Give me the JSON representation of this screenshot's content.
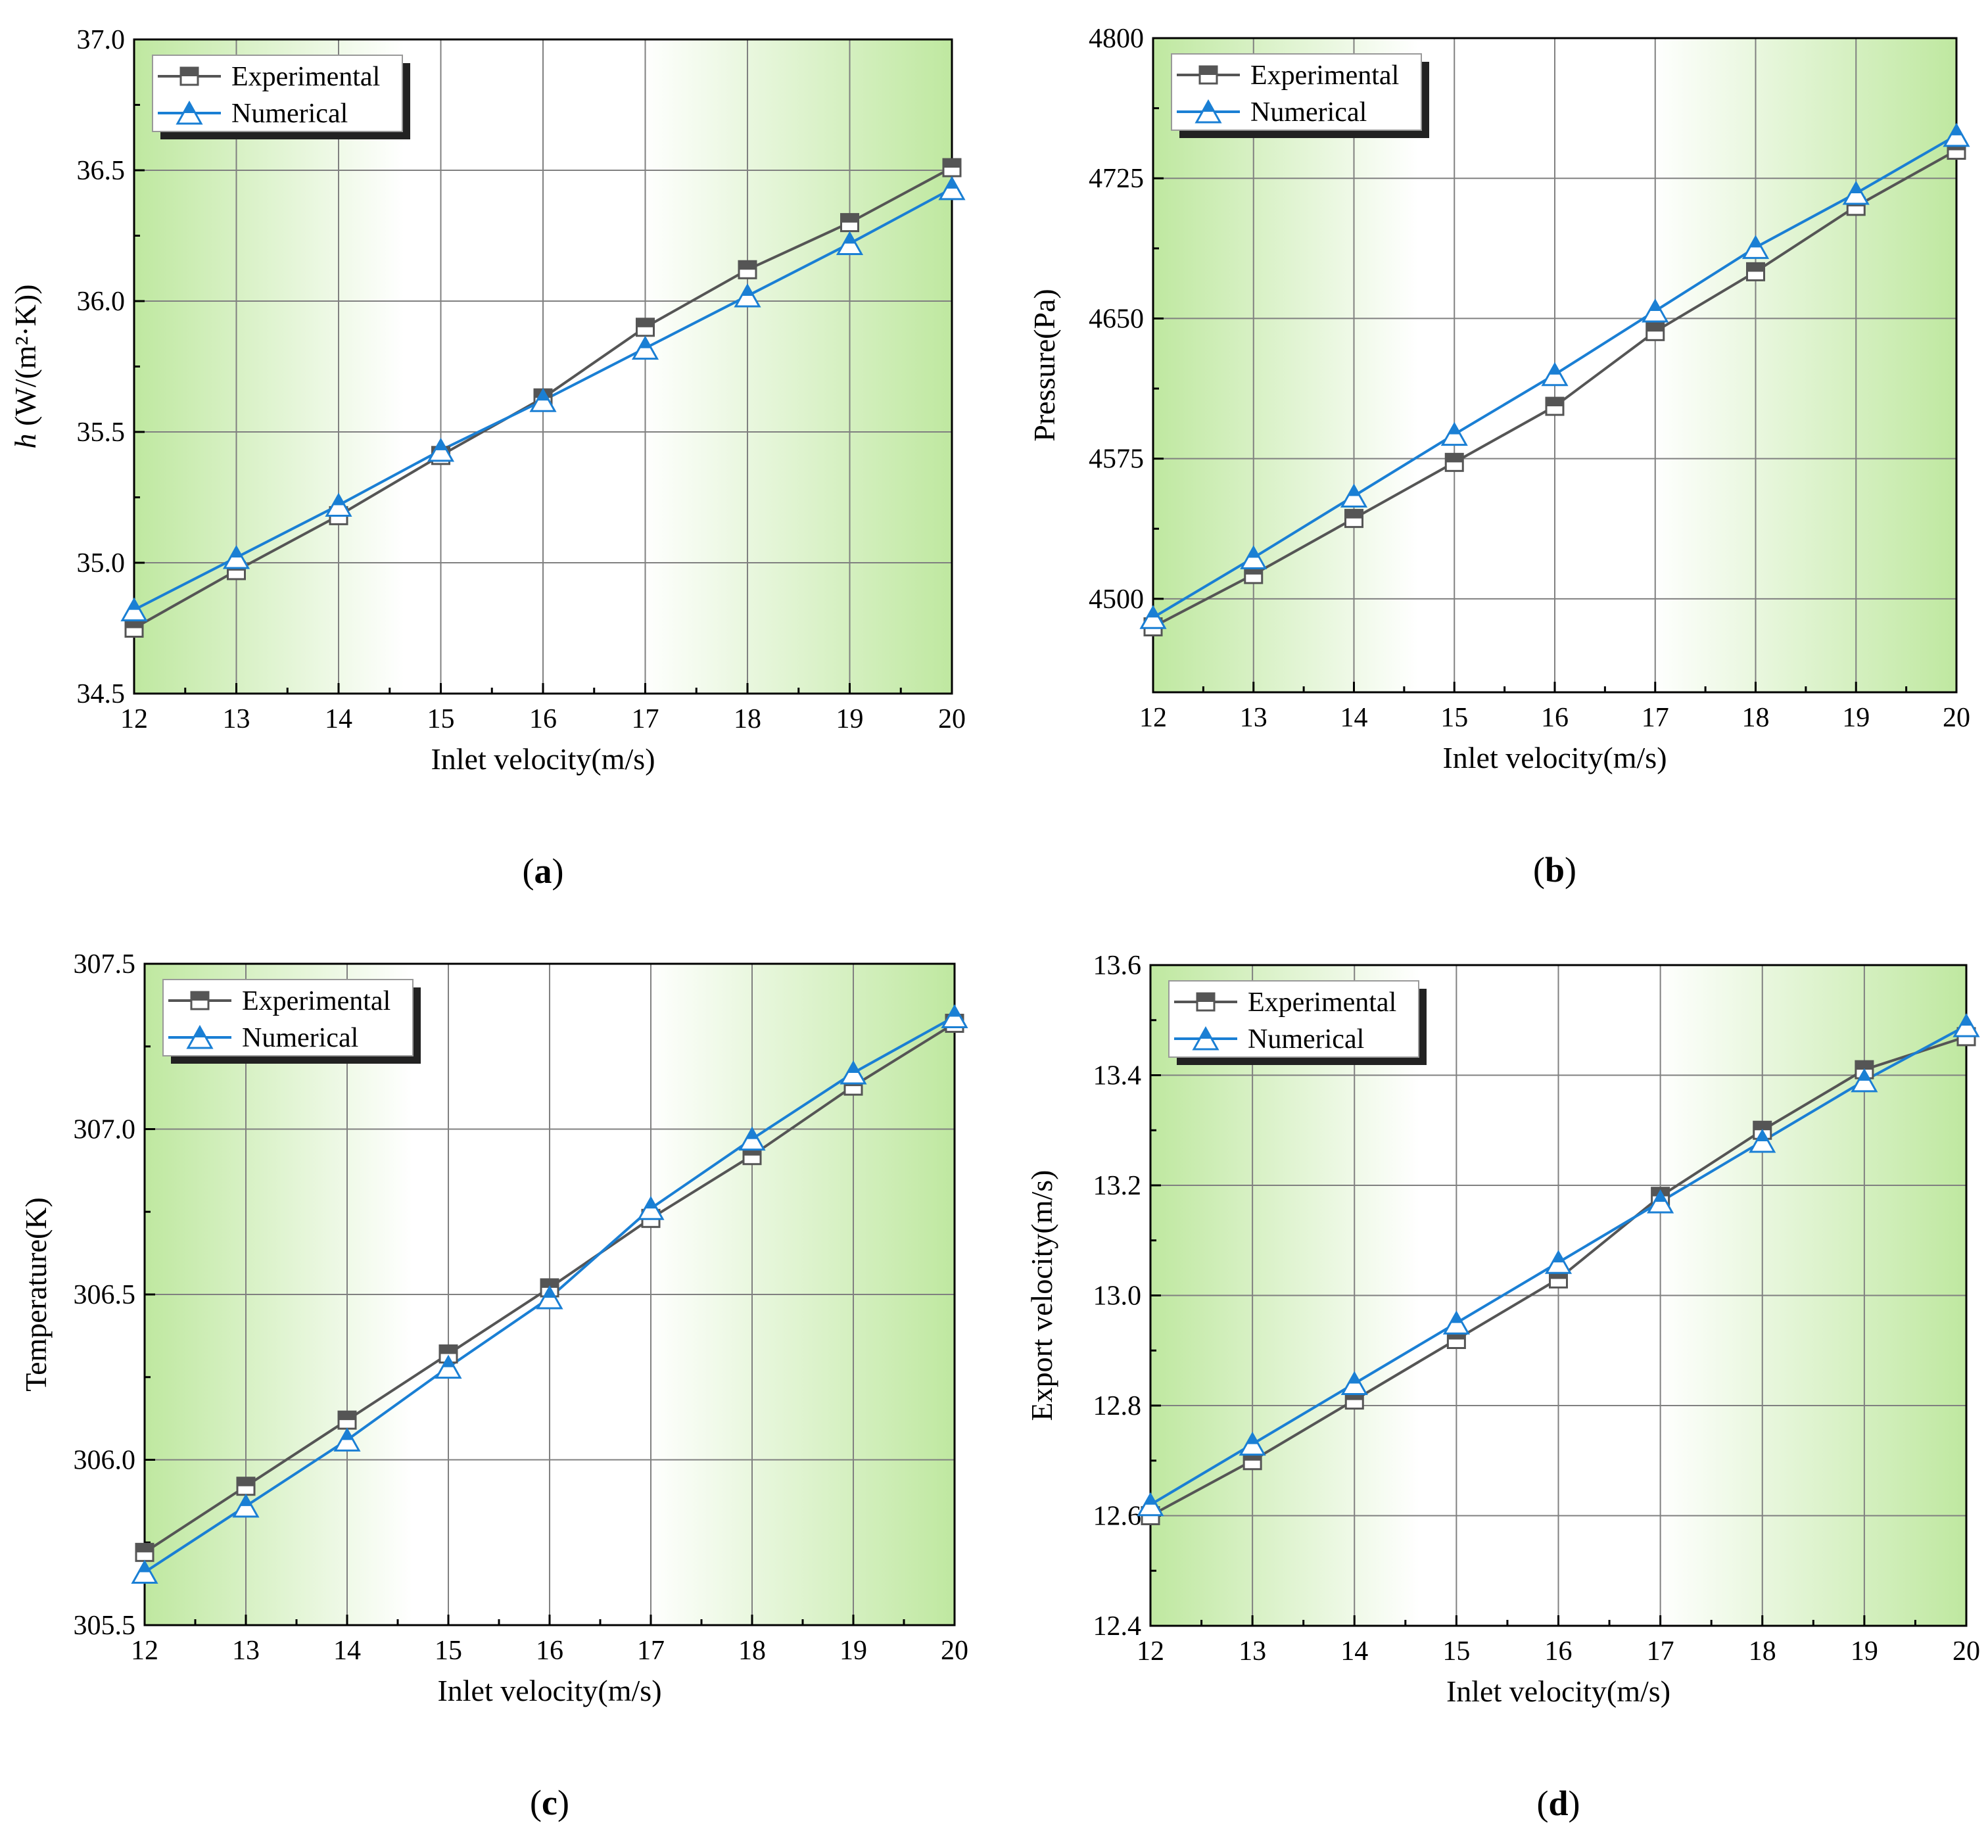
{
  "colors": {
    "experimental": "#555555",
    "numerical": "#1a7fd4",
    "plot_bg_green": "#bfe8a0",
    "plot_bg_white": "#ffffff",
    "grid": "#808080"
  },
  "chart_data": [
    {
      "type": "line",
      "panel_label": "(a)",
      "panel_letter": "a",
      "xlabel": "Inlet velocity(m/s)",
      "ylabel_italic": "h",
      "ylabel_rest": " (W/(m²·K))",
      "x": [
        12,
        13,
        14,
        15,
        16,
        17,
        18,
        19,
        20
      ],
      "xlim": [
        12,
        20
      ],
      "xticks": [
        "12",
        "13",
        "14",
        "15",
        "16",
        "17",
        "18",
        "19",
        "20"
      ],
      "ylim": [
        34.5,
        37.0
      ],
      "yticks": [
        "34.5",
        "35.0",
        "35.5",
        "36.0",
        "36.5",
        "37.0"
      ],
      "gradient": "edges",
      "legend_position": "top-left",
      "series": [
        {
          "name": "Experimental",
          "marker": "square",
          "values": [
            34.75,
            34.97,
            35.18,
            35.41,
            35.63,
            35.9,
            36.12,
            36.3,
            36.51
          ]
        },
        {
          "name": "Numerical",
          "marker": "triangle",
          "values": [
            34.82,
            35.02,
            35.22,
            35.43,
            35.62,
            35.82,
            36.02,
            36.22,
            36.43
          ]
        }
      ]
    },
    {
      "type": "line",
      "panel_label": "(b)",
      "panel_letter": "b",
      "xlabel": "Inlet velocity(m/s)",
      "ylabel_italic": "",
      "ylabel_rest": "Pressure(Pa)",
      "x": [
        12,
        13,
        14,
        15,
        16,
        17,
        18,
        19,
        20
      ],
      "xlim": [
        12,
        20
      ],
      "xticks": [
        "12",
        "13",
        "14",
        "15",
        "16",
        "17",
        "18",
        "19",
        "20"
      ],
      "ylim": [
        4450,
        4800
      ],
      "yticks": [
        "4500",
        "4575",
        "4650",
        "4725",
        "4800"
      ],
      "gradient": "edges",
      "legend_position": "top-left",
      "series": [
        {
          "name": "Experimental",
          "marker": "square",
          "values": [
            4485,
            4513,
            4543,
            4573,
            4603,
            4643,
            4675,
            4710,
            4740
          ]
        },
        {
          "name": "Numerical",
          "marker": "triangle",
          "values": [
            4490,
            4522,
            4555,
            4588,
            4620,
            4654,
            4688,
            4717,
            4748
          ]
        }
      ]
    },
    {
      "type": "line",
      "panel_label": "(c)",
      "panel_letter": "c",
      "xlabel": "Inlet velocity(m/s)",
      "ylabel_italic": "",
      "ylabel_rest": "Temperature(K)",
      "x": [
        12,
        13,
        14,
        15,
        16,
        17,
        18,
        19,
        20
      ],
      "xlim": [
        12,
        20
      ],
      "xticks": [
        "12",
        "13",
        "14",
        "15",
        "16",
        "17",
        "18",
        "19",
        "20"
      ],
      "ylim": [
        305.5,
        307.5
      ],
      "yticks": [
        "305.5",
        "306.0",
        "306.5",
        "307.0",
        "307.5"
      ],
      "gradient": "edges",
      "legend_position": "top-left",
      "series": [
        {
          "name": "Experimental",
          "marker": "square",
          "values": [
            305.72,
            305.92,
            306.12,
            306.32,
            306.52,
            306.73,
            306.92,
            307.13,
            307.32
          ]
        },
        {
          "name": "Numerical",
          "marker": "triangle",
          "values": [
            305.66,
            305.86,
            306.06,
            306.28,
            306.49,
            306.76,
            306.97,
            307.17,
            307.34
          ]
        }
      ]
    },
    {
      "type": "line",
      "panel_label": "(d)",
      "panel_letter": "d",
      "xlabel": "Inlet velocity(m/s)",
      "ylabel_italic": "",
      "ylabel_rest": "Export velocity(m/s)",
      "x": [
        12,
        13,
        14,
        15,
        16,
        17,
        18,
        19,
        20
      ],
      "xlim": [
        12,
        20
      ],
      "xticks": [
        "12",
        "13",
        "14",
        "15",
        "16",
        "17",
        "18",
        "19",
        "20"
      ],
      "ylim": [
        12.4,
        13.6
      ],
      "yticks": [
        "12.4",
        "12.6",
        "12.8",
        "13.0",
        "13.2",
        "13.4",
        "13.6"
      ],
      "gradient": "edges",
      "legend_position": "top-left",
      "series": [
        {
          "name": "Experimental",
          "marker": "square",
          "values": [
            12.6,
            12.7,
            12.81,
            12.92,
            13.03,
            13.18,
            13.3,
            13.41,
            13.47
          ]
        },
        {
          "name": "Numerical",
          "marker": "triangle",
          "values": [
            12.62,
            12.73,
            12.84,
            12.95,
            13.06,
            13.17,
            13.28,
            13.39,
            13.49
          ]
        }
      ]
    }
  ]
}
